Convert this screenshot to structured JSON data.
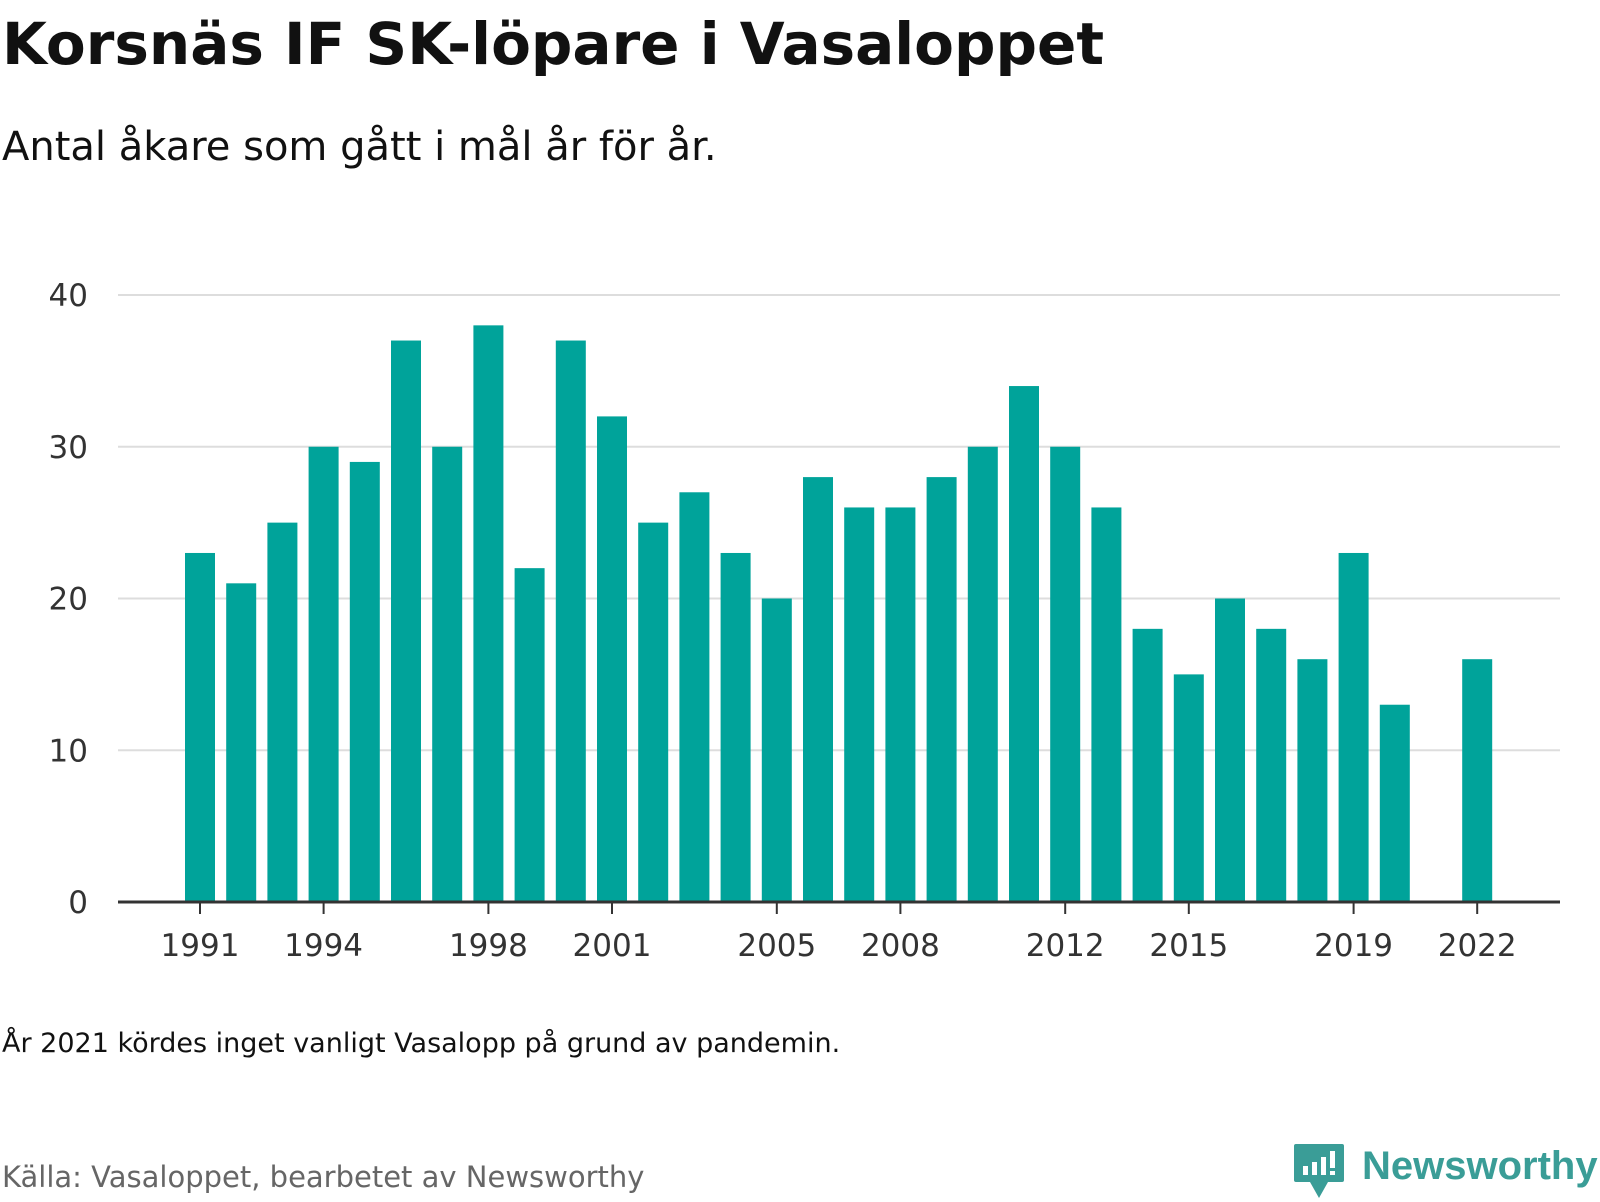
{
  "title": "Korsnäs IF SK-löpare i Vasaloppet",
  "subtitle": "Antal åkare som gått i mål år för år.",
  "note": "År 2021 kördes inget vanligt Vasalopp på grund av pandemin.",
  "source": "Källa: Vasaloppet, bearbetet av Newsworthy",
  "brand": {
    "name": "Newsworthy",
    "icon": "newsworthy-logo-icon",
    "color": "#3a9d97"
  },
  "colors": {
    "bar": "#00a39a",
    "grid": "#dddddd",
    "axis": "#333333",
    "tick_text": "#333333"
  },
  "chart_data": {
    "type": "bar",
    "categories": [
      "1991",
      "1992",
      "1993",
      "1994",
      "1995",
      "1996",
      "1997",
      "1998",
      "1999",
      "2000",
      "2001",
      "2002",
      "2003",
      "2004",
      "2005",
      "2006",
      "2007",
      "2008",
      "2009",
      "2010",
      "2011",
      "2012",
      "2013",
      "2014",
      "2015",
      "2016",
      "2017",
      "2018",
      "2019",
      "2020",
      "2021",
      "2022"
    ],
    "values": [
      23,
      21,
      25,
      30,
      29,
      37,
      30,
      38,
      22,
      37,
      32,
      25,
      27,
      23,
      20,
      28,
      26,
      26,
      28,
      30,
      34,
      30,
      26,
      18,
      15,
      20,
      18,
      16,
      23,
      13,
      null,
      16
    ],
    "x_tick_labels": [
      "1991",
      "1994",
      "1998",
      "2001",
      "2005",
      "2008",
      "2012",
      "2015",
      "2019",
      "2022"
    ],
    "y_ticks": [
      0,
      10,
      20,
      30,
      40
    ],
    "ylim": [
      0,
      40
    ],
    "grid": true,
    "legend": "none"
  }
}
